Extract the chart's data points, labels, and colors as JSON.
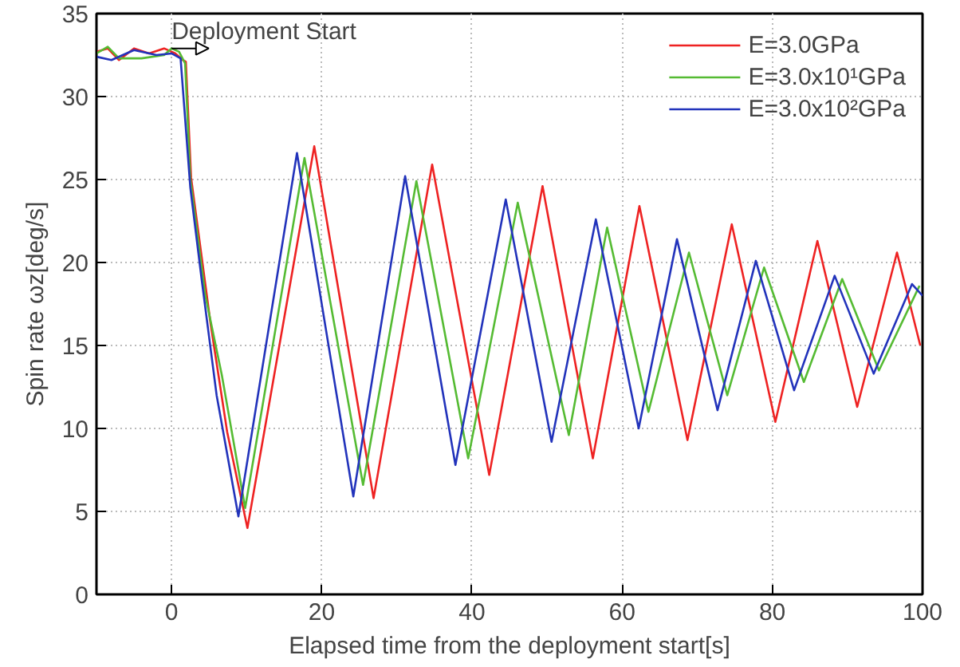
{
  "chart_data": {
    "type": "line",
    "xlabel": "Elapsed time from the deployment start[s]",
    "ylabel": "Spin rate ωz[deg/s]",
    "xlim": [
      -10,
      100
    ],
    "ylim": [
      0,
      35
    ],
    "xticks": [
      0,
      20,
      40,
      60,
      80,
      100
    ],
    "yticks": [
      0,
      5,
      10,
      15,
      20,
      25,
      30,
      35
    ],
    "grid": true,
    "legend": "top right",
    "line_style": "solid",
    "annotations": [
      {
        "text": "Deployment Start",
        "x": 0,
        "y": 32.9
      }
    ],
    "series": [
      {
        "name": "E=3.0GPa",
        "color": "#ee2222",
        "x": [
          -10,
          -8.5,
          -7,
          -5,
          -3,
          -1,
          0.5,
          1.5,
          1.9,
          2.6,
          5.2,
          7.4,
          10.1,
          19.0,
          26.9,
          34.7,
          42.3,
          49.4,
          56.1,
          62.3,
          68.7,
          74.6,
          80.4,
          86.0,
          91.3,
          96.6,
          99.7
        ],
        "values": [
          32.7,
          32.9,
          32.2,
          32.9,
          32.6,
          32.9,
          32.6,
          32.2,
          32.1,
          25.1,
          16.3,
          9.8,
          4.0,
          27.0,
          5.8,
          25.9,
          7.2,
          24.6,
          8.2,
          23.4,
          9.3,
          22.3,
          10.4,
          21.3,
          11.3,
          20.6,
          15.0
        ]
      },
      {
        "name": "E=3.0x10¹GPa",
        "color": "#55bb33",
        "x": [
          -10,
          -8.5,
          -7,
          -4,
          -1,
          0,
          1,
          1.8,
          2.5,
          4.5,
          6.7,
          9.8,
          17.7,
          25.5,
          32.6,
          39.5,
          46.1,
          52.9,
          58.0,
          63.5,
          68.9,
          74.0,
          78.9,
          84.2,
          89.3,
          94.2,
          99.6
        ],
        "values": [
          32.6,
          33.0,
          32.3,
          32.3,
          32.5,
          32.9,
          32.7,
          32.0,
          25.0,
          18.0,
          13.2,
          5.2,
          26.3,
          6.6,
          24.9,
          8.2,
          23.6,
          9.6,
          22.1,
          11.0,
          20.6,
          12.0,
          19.7,
          12.8,
          19.0,
          13.5,
          18.6
        ]
      },
      {
        "name": "E=3.0x10²GPa",
        "color": "#2233bb",
        "x": [
          -10,
          -8,
          -5,
          -2,
          0,
          1.2,
          2.5,
          4,
          6,
          8.9,
          16.7,
          24.2,
          31.1,
          37.8,
          44.5,
          50.6,
          56.5,
          62.2,
          67.3,
          72.7,
          77.8,
          82.9,
          88.3,
          93.5,
          98.6,
          100
        ],
        "values": [
          32.4,
          32.2,
          32.8,
          32.5,
          32.6,
          32.3,
          24.5,
          19.0,
          12.0,
          4.7,
          26.6,
          5.9,
          25.2,
          7.8,
          23.8,
          9.2,
          22.6,
          10.0,
          21.4,
          11.1,
          20.1,
          12.3,
          19.2,
          13.3,
          18.7,
          18.0
        ]
      }
    ]
  }
}
